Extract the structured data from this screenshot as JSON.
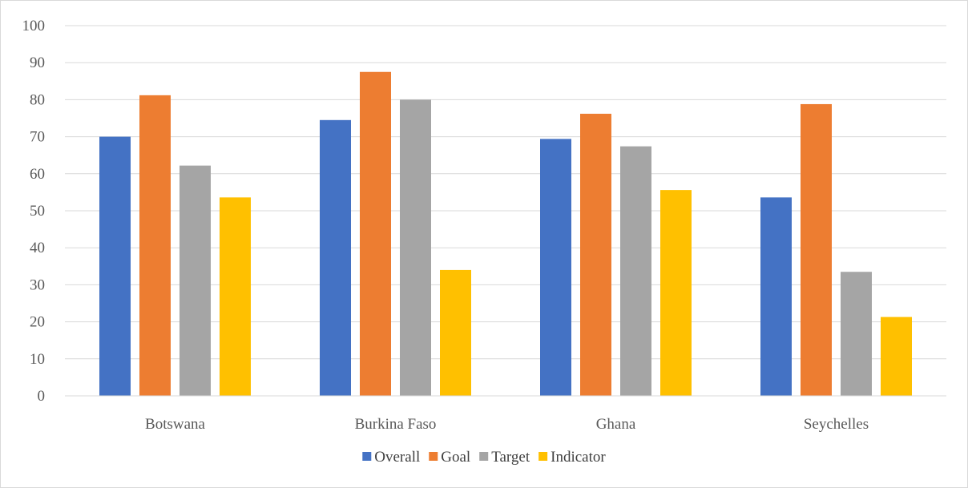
{
  "chart_data": {
    "type": "bar",
    "categories": [
      "Botswana",
      "Burkina Faso",
      "Ghana",
      "Seychelles"
    ],
    "series": [
      {
        "name": "Overall",
        "color": "#4472c4",
        "values": [
          70.0,
          74.5,
          69.4,
          53.6
        ]
      },
      {
        "name": "Goal",
        "color": "#ed7d31",
        "values": [
          81.2,
          87.5,
          76.2,
          78.8
        ]
      },
      {
        "name": "Target",
        "color": "#a5a5a5",
        "values": [
          62.2,
          80.0,
          67.4,
          33.5
        ]
      },
      {
        "name": "Indicator",
        "color": "#ffc000",
        "values": [
          53.6,
          34.0,
          55.6,
          21.3
        ]
      }
    ],
    "yticks": [
      "0",
      "10",
      "20",
      "30",
      "40",
      "50",
      "60",
      "70",
      "80",
      "90",
      "100"
    ],
    "ylim": [
      0,
      100
    ],
    "grid": true,
    "legend_position": "bottom",
    "title": "",
    "xlabel": "",
    "ylabel": ""
  }
}
